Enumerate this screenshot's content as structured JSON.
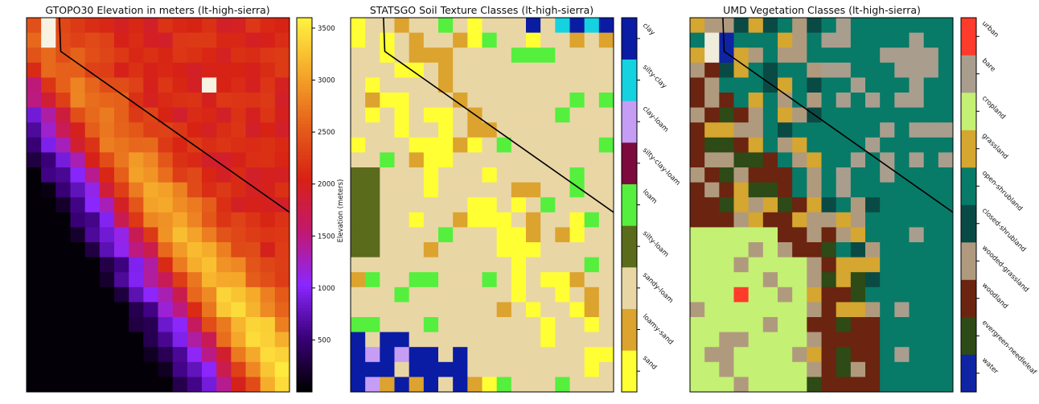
{
  "chart_data": [
    {
      "type": "heatmap",
      "title": "GTOPO30 Elevation in meters (lt-high-sierra)",
      "colorbar": {
        "label": "Elevation (meters)",
        "range": [
          0,
          3600
        ],
        "ticks": [
          500,
          1000,
          1500,
          2000,
          2500,
          3000,
          3500
        ],
        "colormap": "gnuplot",
        "colors": [
          "#000000",
          "#3a0078",
          "#8a27ff",
          "#c21870",
          "#d72214",
          "#e5601a",
          "#f5a82a",
          "#fff040"
        ]
      },
      "grid": {
        "rows": 25,
        "cols": 18,
        "cell_meaning": "elevation"
      },
      "notes": "Elevation increases from dark lowlands (bottom-left) to bright peaks along the east diagonal"
    },
    {
      "type": "heatmap",
      "title": "STATSGO Soil Texture Classes (lt-high-sierra)",
      "legend": {
        "classes": [
          "sand",
          "loamy-sand",
          "sandy-loam",
          "silty-loam",
          "loam",
          "silty-clay-loam",
          "clay-loam",
          "silty-clay",
          "clay"
        ],
        "colors": [
          "#ffff33",
          "#dca32e",
          "#e9d6a5",
          "#5b6b1c",
          "#55ef3d",
          "#7d0a3d",
          "#c69df5",
          "#14d2e0",
          "#0a1ca4"
        ]
      },
      "grid": {
        "rows": 25,
        "cols": 18,
        "cell_meaning": "soil class"
      }
    },
    {
      "type": "heatmap",
      "title": "UMD Vegetation Classes (lt-high-sierra)",
      "legend": {
        "classes": [
          "water",
          "evergreen-needleleaf",
          "woodland",
          "wooded-grassland",
          "closed-shrubland",
          "open-shrubland",
          "grassland",
          "cropland",
          "bare",
          "urban"
        ],
        "colors": [
          "#0f23a5",
          "#2e4a16",
          "#6b2410",
          "#b09a7e",
          "#0a4a45",
          "#087a68",
          "#d5a630",
          "#c4f073",
          "#a99e8e",
          "#ff3b2b"
        ]
      },
      "grid": {
        "rows": 25,
        "cols": 18,
        "cell_meaning": "vegetation class"
      }
    }
  ]
}
